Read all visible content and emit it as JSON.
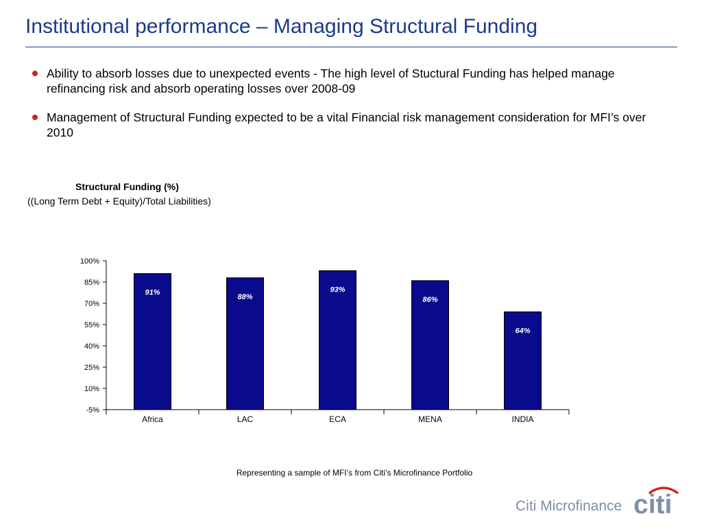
{
  "slide": {
    "title": "Institutional performance – Managing Structural Funding",
    "bullets": [
      "Ability to absorb losses due to unexpected events - The high level of Stuctural Funding has helped manage refinancing risk and absorb operating losses over 2008-09",
      "Management of Structural Funding expected to be a vital Financial risk management consideration for MFI’s over 2010"
    ],
    "footnote": "Representing a sample of MFI’s from Citi’s Microfinance Portfolio",
    "brand_text": "Citi Microfinance",
    "logo_text": "citi"
  },
  "colors": {
    "title": "#1a3a8f",
    "bullet": "#d42020",
    "bar": "#0a0a8c",
    "logo_arc": "#d42020",
    "logo_text": "#7f8fa6"
  },
  "chart_data": {
    "type": "bar",
    "title": "Structural Funding  (%)",
    "subtitle": "((Long Term Debt + Equity)/Total Liabilities)",
    "categories": [
      "Africa",
      "LAC",
      "ECA",
      "MENA",
      "INDIA"
    ],
    "values": [
      91,
      88,
      93,
      86,
      64
    ],
    "data_labels": [
      "91%",
      "88%",
      "93%",
      "86%",
      "64%"
    ],
    "ylim": [
      -5,
      100
    ],
    "yticks": [
      100,
      85,
      70,
      55,
      40,
      25,
      10,
      -5
    ],
    "ytick_labels": [
      "100%",
      "85%",
      "70%",
      "55%",
      "40%",
      "25%",
      "10%",
      "-5%"
    ],
    "grid": false,
    "legend": "none"
  }
}
